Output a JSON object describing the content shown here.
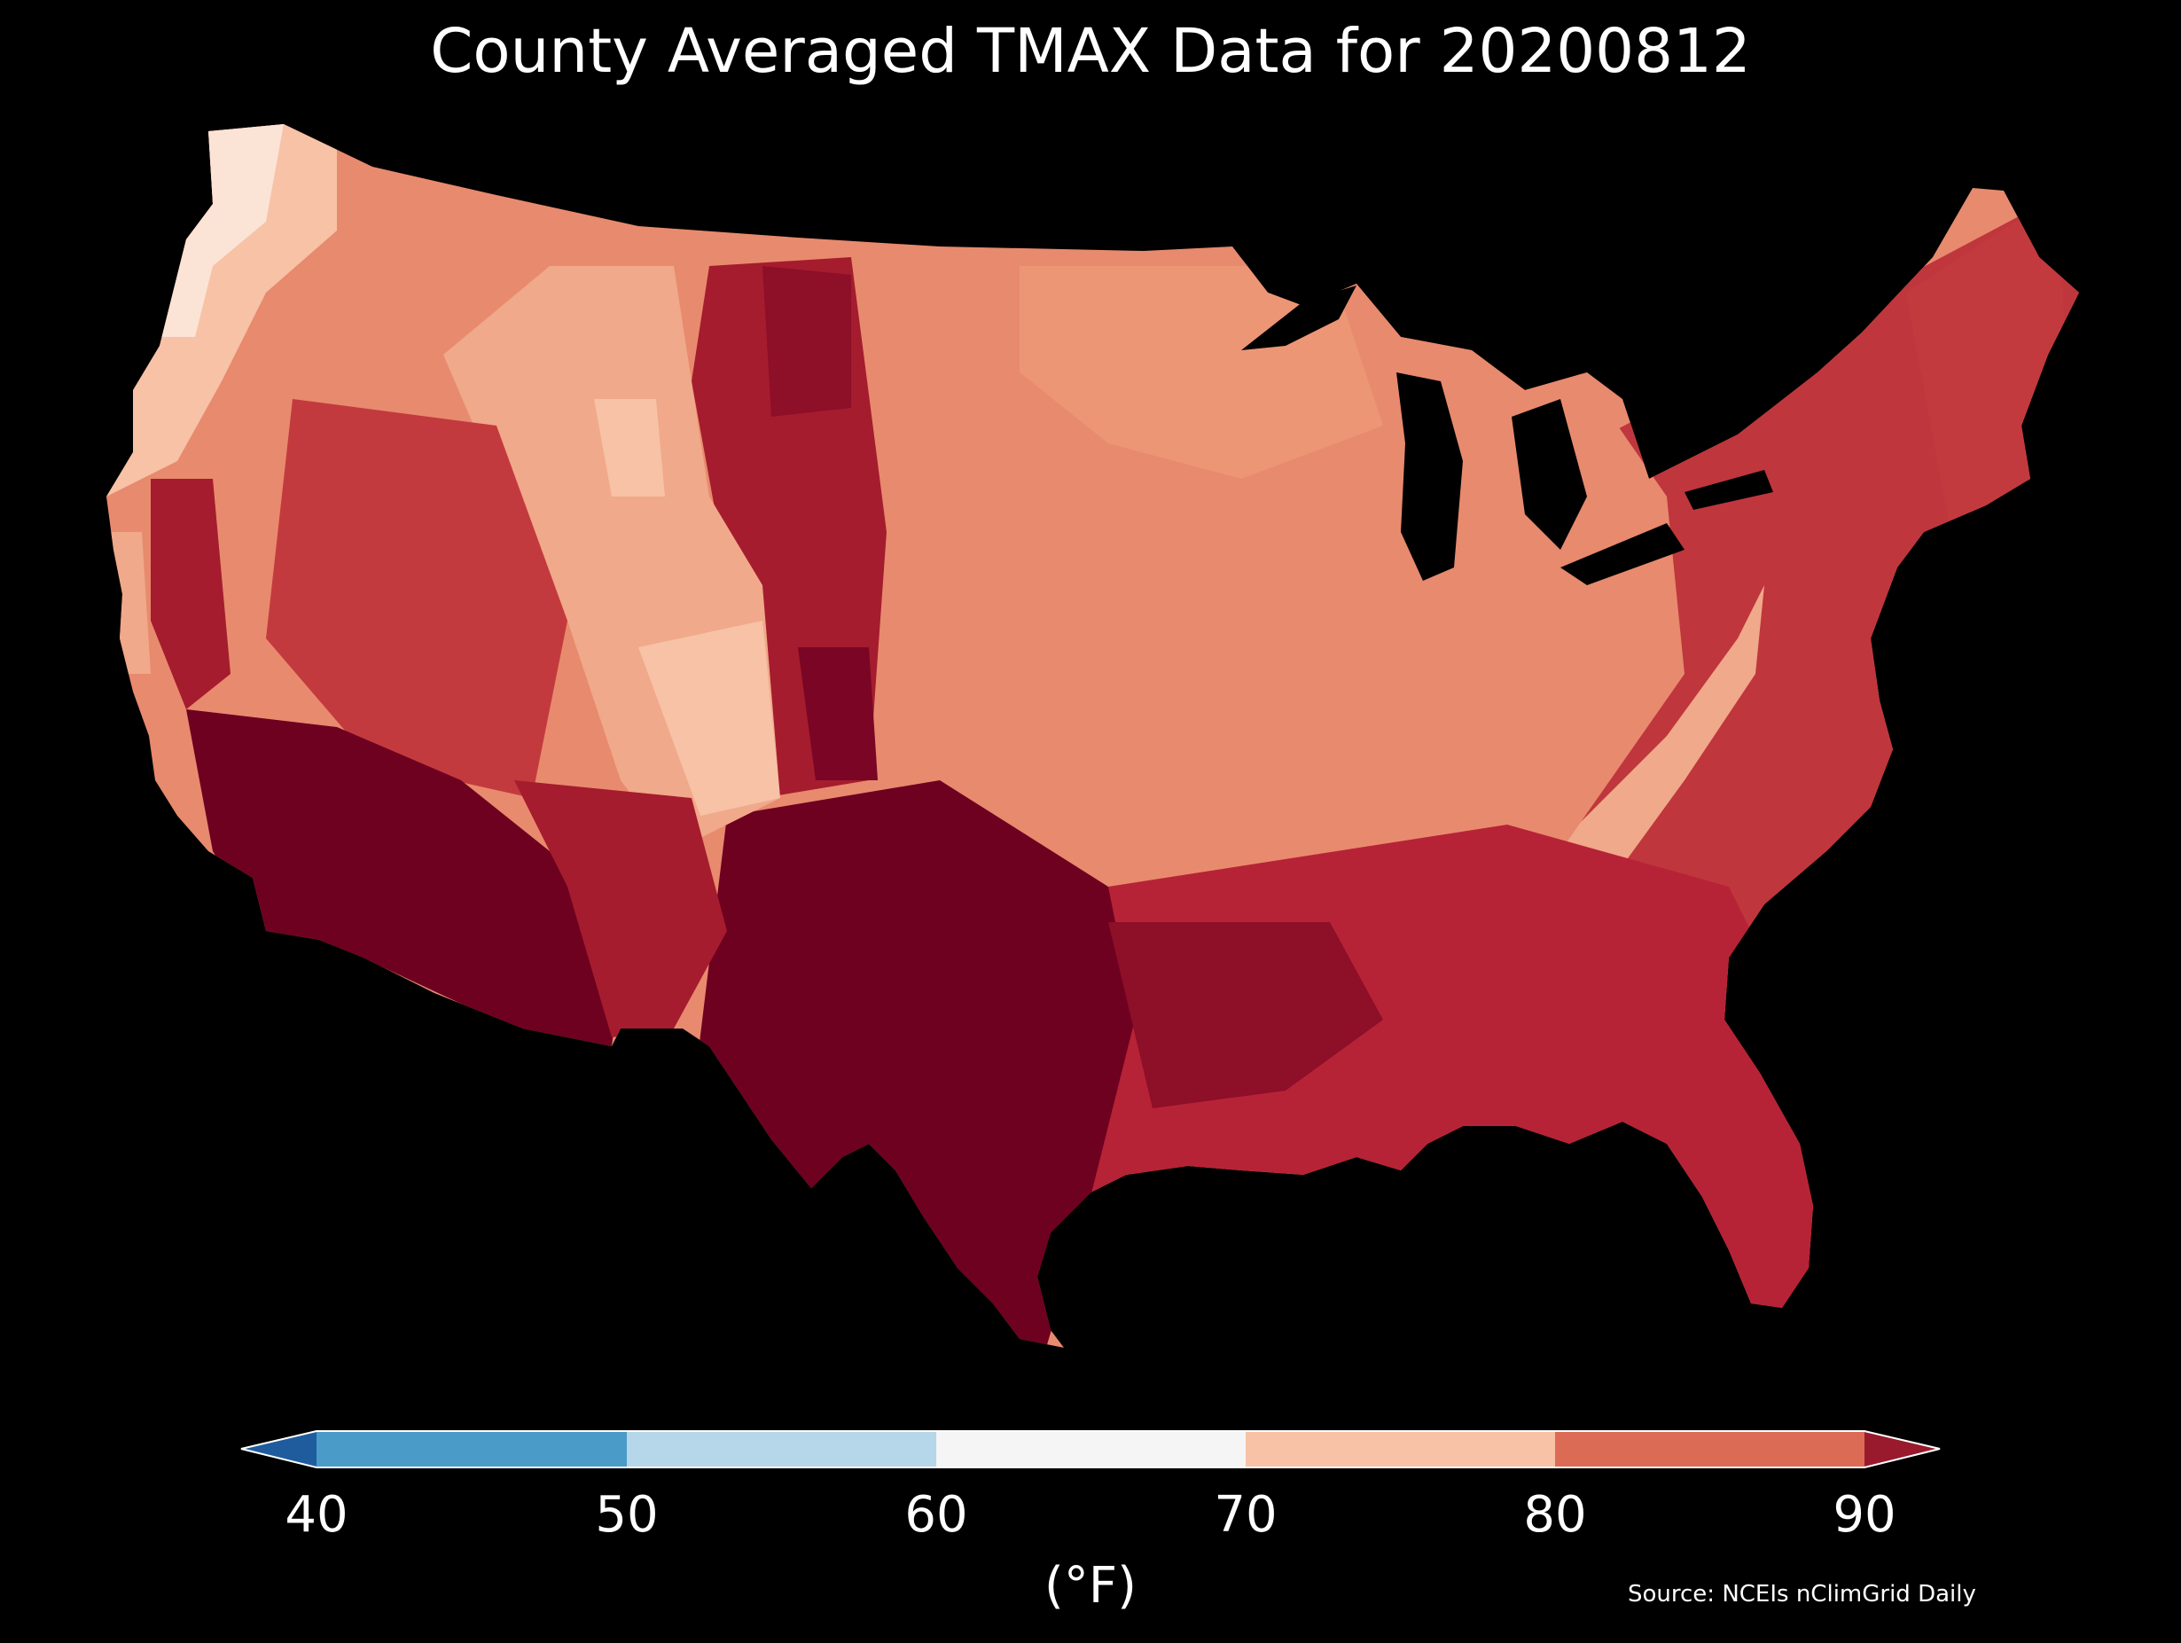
{
  "title": "County Averaged TMAX Data for 20200812",
  "legend": {
    "ticks": [
      "40",
      "50",
      "60",
      "70",
      "80",
      "90"
    ],
    "unit": "(°F)",
    "bins": [
      {
        "range": "<40",
        "color": "#1f5c9e"
      },
      {
        "range": "40-50",
        "color": "#4b9bc9"
      },
      {
        "range": "50-60",
        "color": "#b6d7e9"
      },
      {
        "range": "60-70",
        "color": "#f5f5f5"
      },
      {
        "range": "70-80",
        "color": "#f7c2a6"
      },
      {
        "range": "80-90",
        "color": "#dc6b56"
      },
      {
        "range": ">90",
        "color": "#991a2c"
      }
    ]
  },
  "source": "Source: NCEIs nClimGrid Daily",
  "colors": {
    "background": "#000000",
    "coolest": "#f5f5f5",
    "cool": "#f7c2a6",
    "mild": "#e88a6e",
    "warm": "#dc6b56",
    "hot": "#c0363d",
    "hotter": "#a51c2e",
    "hottest": "#6e0020"
  }
}
